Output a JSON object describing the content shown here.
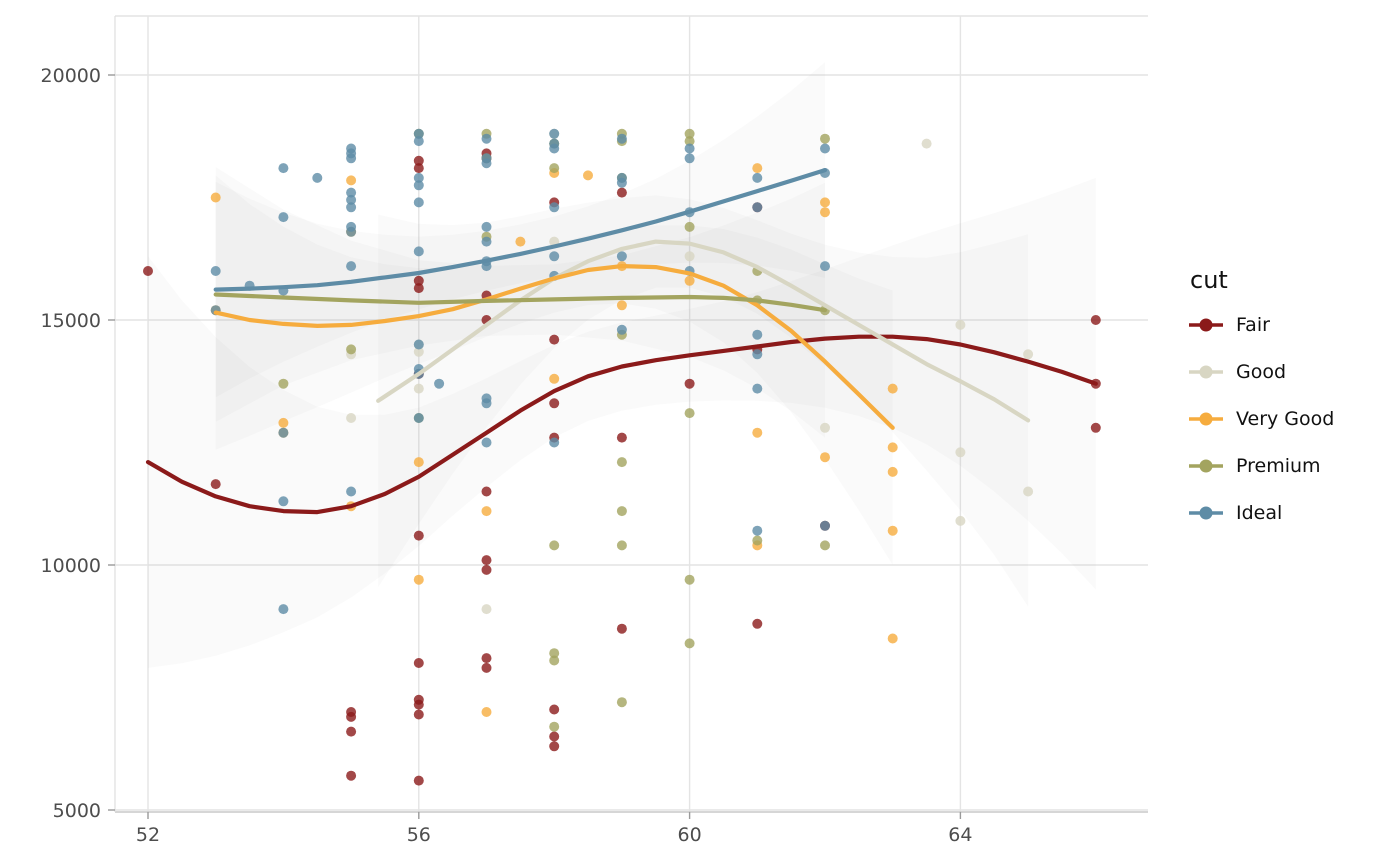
{
  "chart_data": {
    "type": "scatter",
    "title": "",
    "xlabel": "",
    "ylabel": "",
    "x_ticks": [
      52,
      56,
      60,
      64
    ],
    "y_ticks": [
      5000,
      10000,
      15000,
      20000
    ],
    "xlim": [
      51.5,
      66.8
    ],
    "ylim": [
      4950,
      21200
    ],
    "grid": true,
    "legend_title": "cut",
    "legend_position": "right",
    "point_alpha": 0.8,
    "series": [
      {
        "name": "Fair",
        "color": "#8B1A1A",
        "points": [
          [
            52,
            16000
          ],
          [
            53,
            11650
          ],
          [
            55,
            7000
          ],
          [
            55,
            6900
          ],
          [
            55,
            6600
          ],
          [
            55,
            5700
          ],
          [
            56,
            18250
          ],
          [
            56,
            18100
          ],
          [
            56,
            15800
          ],
          [
            56,
            15650
          ],
          [
            56,
            13900
          ],
          [
            56,
            10600
          ],
          [
            56,
            8000
          ],
          [
            56,
            7250
          ],
          [
            56,
            7150
          ],
          [
            56,
            6950
          ],
          [
            56,
            5600
          ],
          [
            57,
            18400
          ],
          [
            57,
            18300
          ],
          [
            57,
            15500
          ],
          [
            57,
            15000
          ],
          [
            57,
            11500
          ],
          [
            57,
            10100
          ],
          [
            57,
            9900
          ],
          [
            57,
            8100
          ],
          [
            57,
            7900
          ],
          [
            58,
            17400
          ],
          [
            58,
            14600
          ],
          [
            58,
            13300
          ],
          [
            58,
            12600
          ],
          [
            58,
            7050
          ],
          [
            58,
            6500
          ],
          [
            58,
            6300
          ],
          [
            59,
            17600
          ],
          [
            59,
            12600
          ],
          [
            59,
            8700
          ],
          [
            60,
            13700
          ],
          [
            61,
            17300
          ],
          [
            61,
            14400
          ],
          [
            61,
            8800
          ],
          [
            62,
            10800
          ],
          [
            66,
            15000
          ],
          [
            66,
            13700
          ],
          [
            66,
            12800
          ]
        ],
        "smooth": [
          [
            52,
            12100
          ],
          [
            52.5,
            11700
          ],
          [
            53,
            11400
          ],
          [
            53.5,
            11200
          ],
          [
            54,
            11100
          ],
          [
            54.5,
            11080
          ],
          [
            55,
            11200
          ],
          [
            55.5,
            11450
          ],
          [
            56,
            11800
          ],
          [
            56.5,
            12250
          ],
          [
            57,
            12700
          ],
          [
            57.5,
            13150
          ],
          [
            58,
            13550
          ],
          [
            58.5,
            13850
          ],
          [
            59,
            14050
          ],
          [
            59.5,
            14180
          ],
          [
            60,
            14280
          ],
          [
            60.5,
            14370
          ],
          [
            61,
            14460
          ],
          [
            61.5,
            14550
          ],
          [
            62,
            14620
          ],
          [
            62.5,
            14660
          ],
          [
            63,
            14660
          ],
          [
            63.5,
            14610
          ],
          [
            64,
            14500
          ],
          [
            64.5,
            14340
          ],
          [
            65,
            14150
          ],
          [
            65.5,
            13940
          ],
          [
            66,
            13700
          ]
        ],
        "band": {
          "wmin": 900,
          "wmax": 4200
        }
      },
      {
        "name": "Good",
        "color": "#D8D6C3",
        "points": [
          [
            55,
            14300
          ],
          [
            55,
            13000
          ],
          [
            56,
            14500
          ],
          [
            56,
            14350
          ],
          [
            56,
            13600
          ],
          [
            57,
            9100
          ],
          [
            58,
            18800
          ],
          [
            58,
            18600
          ],
          [
            58,
            16600
          ],
          [
            60,
            16300
          ],
          [
            62,
            12800
          ],
          [
            63.5,
            18600
          ],
          [
            64,
            14900
          ],
          [
            64,
            12300
          ],
          [
            64,
            10900
          ],
          [
            65,
            14300
          ],
          [
            65,
            11500
          ]
        ],
        "smooth": [
          [
            55.4,
            13350
          ],
          [
            56,
            13900
          ],
          [
            56.5,
            14400
          ],
          [
            57,
            14900
          ],
          [
            57.5,
            15400
          ],
          [
            58,
            15850
          ],
          [
            58.5,
            16200
          ],
          [
            59,
            16450
          ],
          [
            59.5,
            16600
          ],
          [
            60,
            16560
          ],
          [
            60.5,
            16380
          ],
          [
            61,
            16080
          ],
          [
            61.5,
            15700
          ],
          [
            62,
            15300
          ],
          [
            62.5,
            14900
          ],
          [
            63,
            14500
          ],
          [
            63.5,
            14100
          ],
          [
            64,
            13750
          ],
          [
            64.5,
            13380
          ],
          [
            65,
            12950
          ]
        ],
        "band": {
          "wmin": 900,
          "wmax": 3800
        }
      },
      {
        "name": "Very Good",
        "color": "#F6AC3E",
        "points": [
          [
            53,
            17500
          ],
          [
            53,
            15200
          ],
          [
            54,
            12900
          ],
          [
            54,
            12700
          ],
          [
            55,
            17850
          ],
          [
            55,
            16800
          ],
          [
            55,
            11200
          ],
          [
            56,
            12100
          ],
          [
            56,
            9700
          ],
          [
            57,
            11100
          ],
          [
            57,
            7000
          ],
          [
            57.5,
            16600
          ],
          [
            58,
            18000
          ],
          [
            58,
            13800
          ],
          [
            58.5,
            17950
          ],
          [
            59,
            16100
          ],
          [
            59,
            15300
          ],
          [
            60,
            15800
          ],
          [
            61,
            18100
          ],
          [
            61,
            12700
          ],
          [
            61,
            10400
          ],
          [
            62,
            17400
          ],
          [
            62,
            17200
          ],
          [
            62,
            12200
          ],
          [
            63,
            13600
          ],
          [
            63,
            12400
          ],
          [
            63,
            11900
          ],
          [
            63,
            10700
          ],
          [
            63,
            8500
          ]
        ],
        "smooth": [
          [
            53,
            15150
          ],
          [
            53.5,
            15000
          ],
          [
            54,
            14920
          ],
          [
            54.5,
            14880
          ],
          [
            55,
            14900
          ],
          [
            55.5,
            14980
          ],
          [
            56,
            15080
          ],
          [
            56.5,
            15220
          ],
          [
            57,
            15420
          ],
          [
            57.5,
            15640
          ],
          [
            58,
            15850
          ],
          [
            58.5,
            16020
          ],
          [
            59,
            16100
          ],
          [
            59.5,
            16080
          ],
          [
            60,
            15950
          ],
          [
            60.5,
            15700
          ],
          [
            61,
            15300
          ],
          [
            61.5,
            14780
          ],
          [
            62,
            14150
          ],
          [
            62.5,
            13480
          ],
          [
            63,
            12800
          ]
        ],
        "band": {
          "wmin": 700,
          "wmax": 2800
        }
      },
      {
        "name": "Premium",
        "color": "#A3A45F",
        "points": [
          [
            54,
            13700
          ],
          [
            55,
            14400
          ],
          [
            56,
            18800
          ],
          [
            56,
            13000
          ],
          [
            57,
            18800
          ],
          [
            57,
            18300
          ],
          [
            57,
            16700
          ],
          [
            58,
            18600
          ],
          [
            58,
            18100
          ],
          [
            58,
            10400
          ],
          [
            58,
            8200
          ],
          [
            58,
            8050
          ],
          [
            58,
            6700
          ],
          [
            59,
            18800
          ],
          [
            59,
            18650
          ],
          [
            59,
            17900
          ],
          [
            59,
            14700
          ],
          [
            59,
            12100
          ],
          [
            59,
            11100
          ],
          [
            59,
            10400
          ],
          [
            59,
            7200
          ],
          [
            60,
            18800
          ],
          [
            60,
            18650
          ],
          [
            60,
            16900
          ],
          [
            60,
            13100
          ],
          [
            60,
            9700
          ],
          [
            60,
            8400
          ],
          [
            61,
            16000
          ],
          [
            61,
            15400
          ],
          [
            61,
            10500
          ],
          [
            62,
            18700
          ],
          [
            62,
            15200
          ],
          [
            62,
            10400
          ]
        ],
        "smooth": [
          [
            53,
            15520
          ],
          [
            54,
            15460
          ],
          [
            55,
            15400
          ],
          [
            56,
            15350
          ],
          [
            57,
            15390
          ],
          [
            58,
            15420
          ],
          [
            59,
            15450
          ],
          [
            60,
            15470
          ],
          [
            60.5,
            15450
          ],
          [
            61,
            15400
          ],
          [
            61.5,
            15310
          ],
          [
            62,
            15200
          ]
        ],
        "band": {
          "wmin": 700,
          "wmax": 2600
        }
      },
      {
        "name": "Ideal",
        "color": "#5E8CA6",
        "points": [
          [
            53,
            16000
          ],
          [
            53,
            15200
          ],
          [
            53.5,
            15700
          ],
          [
            54,
            18100
          ],
          [
            54,
            17100
          ],
          [
            54,
            15600
          ],
          [
            54,
            12700
          ],
          [
            54,
            11300
          ],
          [
            54,
            9100
          ],
          [
            54.5,
            17900
          ],
          [
            55,
            18500
          ],
          [
            55,
            18400
          ],
          [
            55,
            18300
          ],
          [
            55,
            17600
          ],
          [
            55,
            17450
          ],
          [
            55,
            17300
          ],
          [
            55,
            16900
          ],
          [
            55,
            16800
          ],
          [
            55,
            16100
          ],
          [
            55,
            11500
          ],
          [
            56,
            18800
          ],
          [
            56,
            18650
          ],
          [
            56,
            17900
          ],
          [
            56,
            17750
          ],
          [
            56,
            17400
          ],
          [
            56,
            16400
          ],
          [
            56,
            14500
          ],
          [
            56,
            14000
          ],
          [
            56,
            13900
          ],
          [
            56,
            13000
          ],
          [
            56.3,
            13700
          ],
          [
            57,
            18700
          ],
          [
            57,
            18300
          ],
          [
            57,
            18200
          ],
          [
            57,
            16900
          ],
          [
            57,
            16600
          ],
          [
            57,
            16200
          ],
          [
            57,
            16100
          ],
          [
            57,
            13400
          ],
          [
            57,
            13300
          ],
          [
            57,
            12500
          ],
          [
            58,
            18800
          ],
          [
            58,
            18600
          ],
          [
            58,
            18500
          ],
          [
            58,
            17300
          ],
          [
            58,
            16300
          ],
          [
            58,
            15900
          ],
          [
            58,
            12500
          ],
          [
            59,
            18700
          ],
          [
            59,
            17900
          ],
          [
            59,
            17800
          ],
          [
            59,
            16300
          ],
          [
            59,
            14800
          ],
          [
            60,
            18500
          ],
          [
            60,
            18300
          ],
          [
            60,
            17200
          ],
          [
            60,
            16000
          ],
          [
            61,
            17900
          ],
          [
            61,
            17300
          ],
          [
            61,
            14700
          ],
          [
            61,
            14300
          ],
          [
            61,
            13600
          ],
          [
            61,
            10700
          ],
          [
            62,
            18500
          ],
          [
            62,
            18000
          ],
          [
            62,
            16100
          ],
          [
            62,
            10800
          ]
        ],
        "smooth": [
          [
            53,
            15620
          ],
          [
            53.5,
            15640
          ],
          [
            54,
            15670
          ],
          [
            54.5,
            15710
          ],
          [
            55,
            15780
          ],
          [
            55.5,
            15870
          ],
          [
            56,
            15960
          ],
          [
            56.5,
            16080
          ],
          [
            57,
            16210
          ],
          [
            57.5,
            16350
          ],
          [
            58,
            16500
          ],
          [
            58.5,
            16660
          ],
          [
            59,
            16830
          ],
          [
            59.5,
            17010
          ],
          [
            60,
            17210
          ],
          [
            60.5,
            17420
          ],
          [
            61,
            17630
          ],
          [
            61.5,
            17840
          ],
          [
            62,
            18060
          ]
        ],
        "band": {
          "wmin": 600,
          "wmax": 2200
        }
      }
    ]
  }
}
